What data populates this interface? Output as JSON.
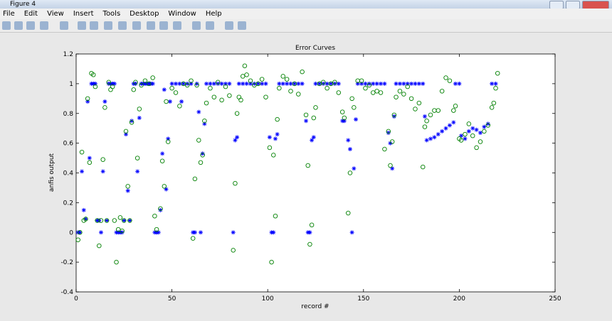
{
  "window": {
    "title": "Figure 4",
    "menu": [
      "File",
      "Edit",
      "View",
      "Insert",
      "Tools",
      "Desktop",
      "Window",
      "Help"
    ]
  },
  "chart_data": {
    "type": "scatter",
    "title": "Error Curves",
    "x_label": "record #",
    "y_label": "anfis output",
    "xlim": [
      0,
      250
    ],
    "ylim": [
      -0.4,
      1.2
    ],
    "xticks": [
      0,
      50,
      100,
      150,
      200,
      250
    ],
    "yticks": [
      -0.4,
      -0.2,
      0,
      0.2,
      0.4,
      0.6,
      0.8,
      1,
      1.2
    ],
    "series": [
      {
        "color": "#0000ff",
        "marker": "star",
        "x": [
          1,
          2,
          3,
          4,
          5,
          6,
          7,
          8,
          9,
          10,
          11,
          12,
          13,
          14,
          15,
          16,
          17,
          18,
          19,
          20,
          21,
          22,
          23,
          24,
          25,
          26,
          27,
          28,
          29,
          30,
          31,
          32,
          33,
          34,
          35,
          36,
          37,
          38,
          39,
          40,
          41,
          42,
          43,
          44,
          45,
          46,
          47,
          48,
          49,
          50,
          52,
          54,
          55,
          56,
          58,
          60,
          61,
          62,
          63,
          64,
          65,
          66,
          67,
          68,
          70,
          72,
          74,
          76,
          78,
          80,
          82,
          83,
          84,
          85,
          87,
          89,
          91,
          93,
          95,
          97,
          99,
          101,
          102,
          103,
          104,
          105,
          106,
          108,
          110,
          112,
          114,
          116,
          118,
          120,
          121,
          122,
          123,
          124,
          125,
          127,
          129,
          131,
          133,
          135,
          137,
          139,
          140,
          142,
          143,
          144,
          145,
          146,
          147,
          149,
          151,
          153,
          155,
          157,
          159,
          161,
          163,
          164,
          165,
          166,
          167,
          169,
          171,
          173,
          175,
          177,
          179,
          181,
          182,
          183,
          185,
          187,
          189,
          191,
          193,
          195,
          197,
          198,
          200,
          201,
          203,
          205,
          207,
          209,
          211,
          213,
          215,
          217,
          219
        ],
        "values": [
          0,
          0,
          0.41,
          0.15,
          0.09,
          0.88,
          0.5,
          1,
          1,
          1,
          0.08,
          0.08,
          0,
          0.41,
          0.88,
          0.08,
          1,
          1,
          1,
          1,
          0,
          0,
          0,
          0,
          0.08,
          0.66,
          0.28,
          0.08,
          0.75,
          1,
          1,
          0.41,
          0.77,
          1,
          1,
          1,
          1,
          1,
          1,
          1,
          0,
          0,
          0,
          0.15,
          0.53,
          0.96,
          0.29,
          0.63,
          0.88,
          1,
          1,
          1,
          0.88,
          1,
          1,
          1,
          0,
          0,
          1,
          0.81,
          0,
          0.53,
          0.73,
          1,
          1,
          1,
          1,
          1,
          1,
          1,
          0,
          0.62,
          0.64,
          1,
          1,
          1,
          1,
          1,
          1,
          1,
          1,
          0.64,
          0,
          0,
          0.63,
          0.66,
          1,
          1,
          1,
          1,
          1,
          1,
          1,
          0.75,
          0,
          0,
          0.62,
          0.64,
          1,
          1,
          1,
          1,
          1,
          1,
          1,
          0.75,
          0.75,
          0.62,
          0.56,
          0,
          0.43,
          0.76,
          1,
          1,
          1,
          1,
          1,
          1,
          1,
          1,
          0.67,
          0.6,
          0.43,
          0.78,
          1,
          1,
          1,
          1,
          1,
          1,
          1,
          1,
          0.78,
          0.62,
          0.63,
          0.64,
          0.66,
          0.68,
          0.7,
          0.72,
          0.74,
          1,
          1,
          0.65,
          0.63,
          0.68,
          0.7,
          0.69,
          0.67,
          0.71,
          0.73,
          1,
          1
        ]
      },
      {
        "color": "#008000",
        "marker": "circle",
        "x": [
          1,
          2,
          3,
          4,
          5,
          6,
          7,
          8,
          9,
          10,
          11,
          12,
          13,
          14,
          15,
          16,
          17,
          18,
          19,
          20,
          21,
          22,
          23,
          24,
          25,
          26,
          27,
          28,
          29,
          30,
          31,
          32,
          33,
          34,
          36,
          38,
          40,
          41,
          42,
          44,
          45,
          46,
          47,
          48,
          50,
          52,
          54,
          56,
          58,
          60,
          61,
          62,
          63,
          64,
          65,
          66,
          67,
          68,
          70,
          72,
          74,
          76,
          78,
          80,
          82,
          83,
          84,
          85,
          86,
          87,
          88,
          89,
          91,
          93,
          95,
          97,
          99,
          101,
          102,
          103,
          104,
          105,
          106,
          108,
          110,
          112,
          114,
          116,
          118,
          120,
          121,
          122,
          123,
          124,
          125,
          127,
          129,
          131,
          133,
          135,
          137,
          139,
          140,
          142,
          143,
          144,
          145,
          147,
          149,
          151,
          153,
          155,
          157,
          159,
          161,
          163,
          164,
          165,
          166,
          167,
          169,
          171,
          173,
          175,
          177,
          179,
          181,
          182,
          183,
          185,
          187,
          189,
          191,
          193,
          195,
          197,
          198,
          200,
          201,
          203,
          205,
          207,
          209,
          211,
          213,
          215,
          217,
          218,
          219,
          220
        ],
        "values": [
          -0.05,
          0,
          0.54,
          0.08,
          0.09,
          0.9,
          0.47,
          1.07,
          1.06,
          0.98,
          0.08,
          -0.09,
          0.08,
          0.49,
          0.84,
          0.08,
          1.01,
          0.96,
          0.98,
          0.08,
          -0.2,
          0.02,
          0.1,
          0.01,
          0.08,
          0.68,
          0.31,
          0.08,
          0.74,
          0.96,
          1.01,
          0.5,
          0.83,
          0.99,
          1.02,
          1,
          1.04,
          0.11,
          0.02,
          0.16,
          0.48,
          0.31,
          0.88,
          0.61,
          0.97,
          0.94,
          0.85,
          1,
          0.99,
          1.02,
          -0.04,
          0.36,
          0.99,
          0.62,
          0.47,
          0.52,
          0.75,
          0.87,
          0.97,
          0.91,
          1.01,
          0.89,
          0.98,
          0.92,
          -0.12,
          0.33,
          0.8,
          0.91,
          0.89,
          1.05,
          1.12,
          1.06,
          1.02,
          0.99,
          1,
          1.03,
          0.91,
          0.57,
          -0.2,
          0.52,
          0.11,
          0.76,
          0.97,
          1.05,
          1.03,
          0.95,
          1,
          0.93,
          1.08,
          0.79,
          0.45,
          -0.08,
          0.05,
          0.77,
          0.84,
          1,
          1.01,
          0.97,
          1,
          1.01,
          0.94,
          0.81,
          0.77,
          0.13,
          0.4,
          0.9,
          0.84,
          1.02,
          1.02,
          0.97,
          0.99,
          0.94,
          0.95,
          0.94,
          0.56,
          0.68,
          0.45,
          0.61,
          0.79,
          0.91,
          0.95,
          0.93,
          0.98,
          0.9,
          0.83,
          0.87,
          0.44,
          0.71,
          0.75,
          0.79,
          0.82,
          0.82,
          0.95,
          1.04,
          1.02,
          0.82,
          0.85,
          0.63,
          0.62,
          0.66,
          0.73,
          0.65,
          0.57,
          0.61,
          0.68,
          0.72,
          0.84,
          0.87,
          0.97,
          1.07
        ]
      }
    ]
  }
}
